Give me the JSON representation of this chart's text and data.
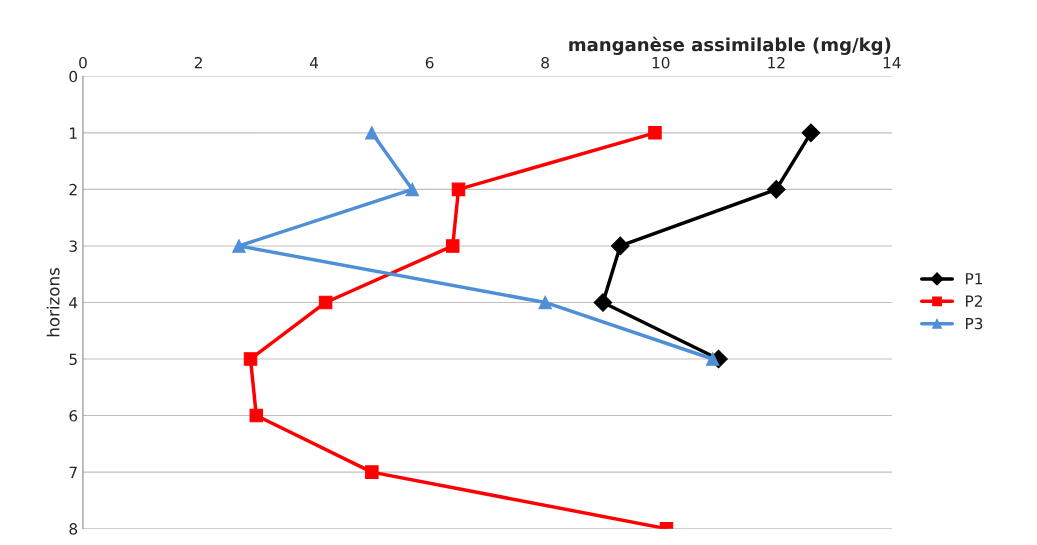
{
  "chart_data": {
    "type": "line",
    "xlabel": "manganèse assimilable (mg/kg)",
    "ylabel": "horizons",
    "xlim": [
      0,
      14
    ],
    "xticks": [
      0,
      2,
      4,
      6,
      8,
      10,
      12,
      14
    ],
    "ylim": [
      8,
      0
    ],
    "yticks": [
      0,
      1,
      2,
      3,
      4,
      5,
      6,
      7,
      8
    ],
    "grid": "y",
    "legend": "right",
    "series": [
      {
        "name": "P1",
        "color": "#000000",
        "marker": "diamond",
        "x": [
          12.6,
          12.0,
          9.3,
          9.0,
          11.0
        ],
        "values": [
          1,
          2,
          3,
          4,
          5
        ]
      },
      {
        "name": "P2",
        "color": "#ff0000",
        "marker": "square",
        "x": [
          9.9,
          6.5,
          6.4,
          4.2,
          2.9,
          3.0,
          5.0,
          10.1
        ],
        "values": [
          1,
          2,
          3,
          4,
          5,
          6,
          7,
          8
        ]
      },
      {
        "name": "P3",
        "color": "#4f8fd6",
        "marker": "triangle",
        "x": [
          5.0,
          5.7,
          2.7,
          8.0,
          10.9
        ],
        "values": [
          1,
          2,
          3,
          4,
          5
        ]
      }
    ]
  }
}
